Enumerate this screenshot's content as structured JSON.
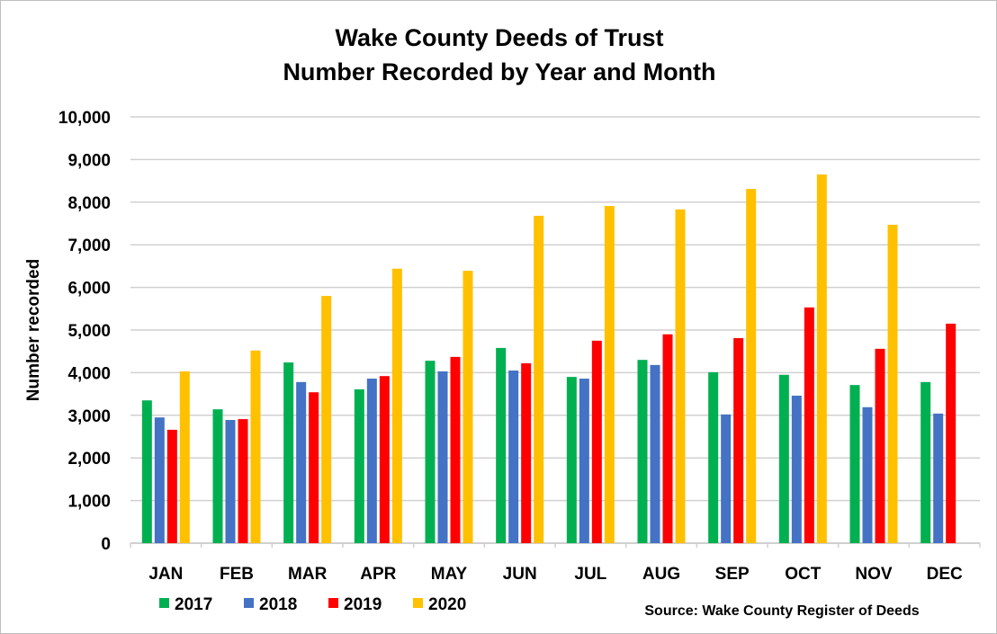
{
  "chart_data": {
    "type": "bar",
    "title": [
      "Wake County Deeds of Trust",
      "Number Recorded by Year and Month"
    ],
    "xlabel": "",
    "ylabel": "Number recorded",
    "ylim": [
      0,
      10000
    ],
    "yticks": [
      "0",
      "1,000",
      "2,000",
      "3,000",
      "4,000",
      "5,000",
      "6,000",
      "7,000",
      "8,000",
      "9,000",
      "10,000"
    ],
    "grid": true,
    "legend_position": "bottom-left",
    "categories": [
      "JAN",
      "FEB",
      "MAR",
      "APR",
      "MAY",
      "JUN",
      "JUL",
      "AUG",
      "SEP",
      "OCT",
      "NOV",
      "DEC"
    ],
    "series": [
      {
        "name": "2017",
        "color": "#00B050",
        "values": [
          3350,
          3140,
          4240,
          3610,
          4280,
          4580,
          3900,
          4300,
          4010,
          3950,
          3710,
          3780
        ]
      },
      {
        "name": "2018",
        "color": "#4472C4",
        "values": [
          2950,
          2890,
          3780,
          3860,
          4030,
          4050,
          3860,
          4180,
          3020,
          3460,
          3190,
          3040
        ]
      },
      {
        "name": "2019",
        "color": "#FF0000",
        "values": [
          2660,
          2910,
          3540,
          3920,
          4370,
          4220,
          4750,
          4900,
          4810,
          5530,
          4560,
          5150
        ]
      },
      {
        "name": "2020",
        "color": "#FFC000",
        "values": [
          4030,
          4520,
          5800,
          6440,
          6390,
          7680,
          7910,
          7830,
          8310,
          8650,
          7470,
          null
        ]
      }
    ],
    "annotation": "Source: Wake County Register of Deeds"
  }
}
